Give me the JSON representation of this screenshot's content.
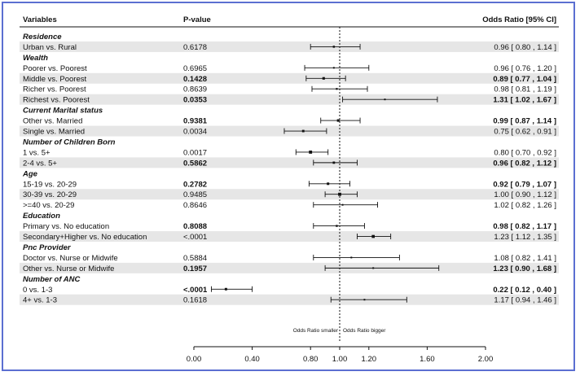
{
  "chart_data": {
    "type": "forest",
    "headers": {
      "variables": "Variables",
      "pvalue": "P-value",
      "or": "Odds Ratio [95% CI]"
    },
    "rows": [
      {
        "kind": "group",
        "label": "Residence"
      },
      {
        "kind": "item",
        "label": "Urban vs. Rural",
        "p": "0.6178",
        "or": 0.96,
        "lo": 0.8,
        "hi": 1.14,
        "text": "0.96 [ 0.80 , 1.14 ]",
        "bold": false,
        "shade": true
      },
      {
        "kind": "group",
        "label": "Wealth"
      },
      {
        "kind": "item",
        "label": "Poorer vs. Poorest",
        "p": "0.6965",
        "or": 0.96,
        "lo": 0.76,
        "hi": 1.2,
        "text": "0.96 [ 0.76 , 1.20 ]",
        "bold": false,
        "shade": false
      },
      {
        "kind": "item",
        "label": "Middle vs. Poorest",
        "p": "0.1428",
        "or": 0.89,
        "lo": 0.77,
        "hi": 1.04,
        "text": "0.89 [ 0.77 , 1.04 ]",
        "bold": true,
        "shade": true
      },
      {
        "kind": "item",
        "label": "Richer vs. Poorest",
        "p": "0.8639",
        "or": 0.98,
        "lo": 0.81,
        "hi": 1.19,
        "text": "0.98 [ 0.81 , 1.19 ]",
        "bold": false,
        "shade": false
      },
      {
        "kind": "item",
        "label": "Richest vs. Poorest",
        "p": "0.0353",
        "or": 1.31,
        "lo": 1.02,
        "hi": 1.67,
        "text": "1.31 [ 1.02 , 1.67 ]",
        "bold": true,
        "shade": true
      },
      {
        "kind": "group",
        "label": "Current Marital status"
      },
      {
        "kind": "item",
        "label": "Other vs. Married",
        "p": "0.9381",
        "or": 0.99,
        "lo": 0.87,
        "hi": 1.14,
        "text": "0.99 [ 0.87 , 1.14 ]",
        "bold": true,
        "shade": false
      },
      {
        "kind": "item",
        "label": "Single vs. Married",
        "p": "0.0034",
        "or": 0.75,
        "lo": 0.62,
        "hi": 0.91,
        "text": "0.75 [ 0.62 , 0.91 ]",
        "bold": false,
        "shade": true
      },
      {
        "kind": "group",
        "label": "Number of Children Born"
      },
      {
        "kind": "item",
        "label": "1 vs. 5+",
        "p": "0.0017",
        "or": 0.8,
        "lo": 0.7,
        "hi": 0.92,
        "text": "0.80 [ 0.70 , 0.92 ]",
        "bold": false,
        "shade": false
      },
      {
        "kind": "item",
        "label": "2-4 vs. 5+",
        "p": "0.5862",
        "or": 0.96,
        "lo": 0.82,
        "hi": 1.12,
        "text": "0.96 [ 0.82 , 1.12 ]",
        "bold": true,
        "shade": true
      },
      {
        "kind": "group",
        "label": "Age"
      },
      {
        "kind": "item",
        "label": "15-19 vs. 20-29",
        "p": "0.2782",
        "or": 0.92,
        "lo": 0.79,
        "hi": 1.07,
        "text": "0.92 [ 0.79 , 1.07 ]",
        "bold": true,
        "shade": false
      },
      {
        "kind": "item",
        "label": "30-39 vs. 20-29",
        "p": "0.9485",
        "or": 1.0,
        "lo": 0.9,
        "hi": 1.12,
        "text": "1.00 [ 0.90 , 1.12 ]",
        "bold": false,
        "shade": true
      },
      {
        "kind": "item",
        "label": ">=40 vs. 20-29",
        "p": "0.8646",
        "or": 1.02,
        "lo": 0.82,
        "hi": 1.26,
        "text": "1.02 [ 0.82 , 1.26 ]",
        "bold": false,
        "shade": false
      },
      {
        "kind": "group",
        "label": "Education"
      },
      {
        "kind": "item",
        "label": "Primary vs. No education",
        "p": "0.8088",
        "or": 0.98,
        "lo": 0.82,
        "hi": 1.17,
        "text": "0.98 [ 0.82 , 1.17 ]",
        "bold": true,
        "shade": false
      },
      {
        "kind": "item",
        "label": "Secondary+Higher vs. No education",
        "p": "<.0001",
        "or": 1.23,
        "lo": 1.12,
        "hi": 1.35,
        "text": "1.23 [ 1.12 , 1.35 ]",
        "bold": false,
        "shade": true
      },
      {
        "kind": "group",
        "label": "Pnc Provider"
      },
      {
        "kind": "item",
        "label": "Doctor vs. Nurse or Midwife",
        "p": "0.5884",
        "or": 1.08,
        "lo": 0.82,
        "hi": 1.41,
        "text": "1.08 [ 0.82 , 1.41 ]",
        "bold": false,
        "shade": false
      },
      {
        "kind": "item",
        "label": "Other vs. Nurse or Midwife",
        "p": "0.1957",
        "or": 1.23,
        "lo": 0.9,
        "hi": 1.68,
        "text": "1.23 [ 0.90 , 1.68 ]",
        "bold": true,
        "shade": true
      },
      {
        "kind": "group",
        "label": "Number of ANC"
      },
      {
        "kind": "item",
        "label": "0 vs. 1-3",
        "p": "<.0001",
        "or": 0.22,
        "lo": 0.12,
        "hi": 0.4,
        "text": "0.22 [ 0.12 , 0.40 ]",
        "bold": true,
        "shade": false
      },
      {
        "kind": "item",
        "label": "4+ vs. 1-3",
        "p": "0.1618",
        "or": 1.17,
        "lo": 0.94,
        "hi": 1.46,
        "text": "1.17 [ 0.94 , 1.46 ]",
        "bold": false,
        "shade": true
      }
    ],
    "xlim": [
      0,
      2
    ],
    "ticks": [
      "0.00",
      "0.40",
      "0.80",
      "1.00",
      "1.20",
      "1.60",
      "2.00"
    ],
    "reference": 1.0,
    "annotation_left": "Odds Ratio smaller",
    "annotation_right": "Odds Ratio bigger"
  },
  "colors": {
    "shade": "#e6e6e6",
    "border": "#5b6fd1",
    "ink": "#111111"
  }
}
